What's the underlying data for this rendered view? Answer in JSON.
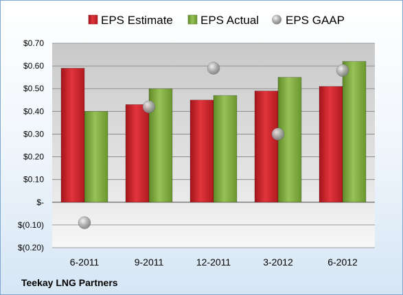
{
  "chart_data": {
    "type": "bar",
    "categories": [
      "6-2011",
      "9-2011",
      "12-2011",
      "3-2012",
      "6-2012"
    ],
    "series": [
      {
        "name": "EPS Estimate",
        "kind": "bar",
        "color": "#cc1f26",
        "values": [
          0.59,
          0.43,
          0.45,
          0.49,
          0.51
        ]
      },
      {
        "name": "EPS Actual",
        "kind": "bar",
        "color": "#7aa53a",
        "values": [
          0.4,
          0.5,
          0.47,
          0.55,
          0.62
        ]
      },
      {
        "name": "EPS GAAP",
        "kind": "scatter",
        "color": "#a6a6a6",
        "values": [
          -0.09,
          0.42,
          0.59,
          0.3,
          0.58
        ]
      }
    ],
    "ylim": [
      -0.2,
      0.7
    ],
    "yticks": [
      0.7,
      0.6,
      0.5,
      0.4,
      0.3,
      0.2,
      0.1,
      0.0,
      -0.1,
      -0.2
    ],
    "ytick_labels": [
      "$0.70",
      "$0.60",
      "$0.50",
      "$0.40",
      "$0.30",
      "$0.20",
      "$0.10",
      "$-",
      "$(0.10)",
      "$(0.20)"
    ],
    "grid": true,
    "legend": "top",
    "title": "",
    "xlabel": "",
    "ylabel": ""
  },
  "footer": {
    "company": "Teekay LNG Partners"
  }
}
